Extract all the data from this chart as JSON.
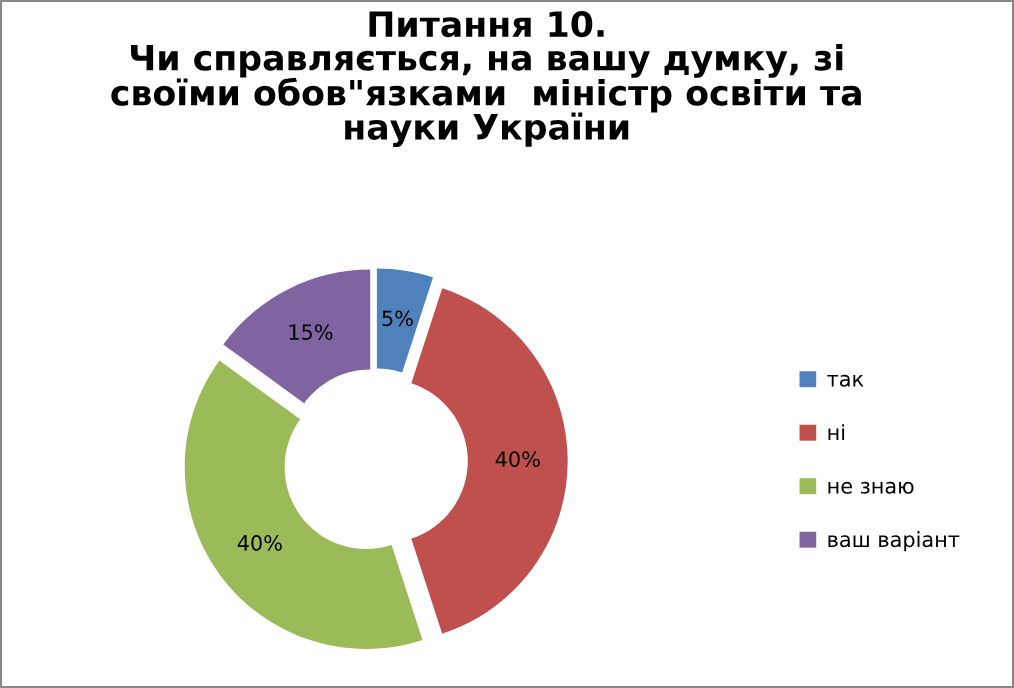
{
  "chart_data": {
    "type": "donut",
    "title": "Питання 10.\nЧи справляється, на вашу думку, зі\nсвоїми обов\"язками  міністр освіти та\nнауки України",
    "categories": [
      "так",
      "ні",
      "не знаю",
      "ваш варіант"
    ],
    "values": [
      5,
      40,
      40,
      15
    ],
    "colors": [
      "#4f81bd",
      "#c0504d",
      "#9bbb59",
      "#8064a2"
    ],
    "value_labels": [
      "5%",
      "40%",
      "40%",
      "15%"
    ],
    "legend": "right"
  }
}
